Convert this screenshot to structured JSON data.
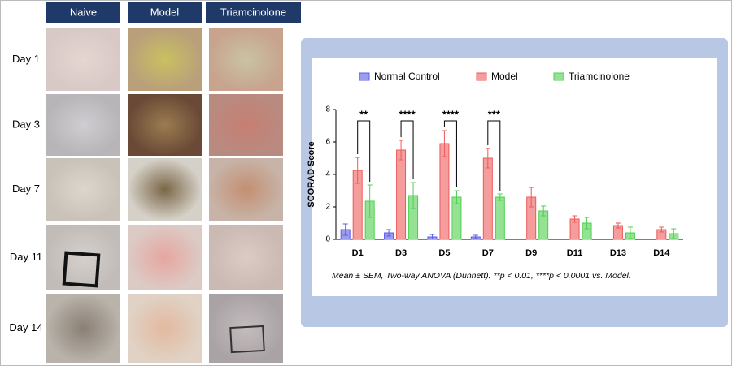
{
  "headers": [
    "Naive",
    "Model",
    "Triamcinolone"
  ],
  "row_labels": [
    "Day 1",
    "Day 3",
    "Day 7",
    "Day 11",
    "Day 14"
  ],
  "chart_data": {
    "type": "bar",
    "y_label": "SCORAD Score",
    "categories": [
      "D1",
      "D3",
      "D5",
      "D7",
      "D9",
      "D11",
      "D13",
      "D14"
    ],
    "series": [
      {
        "name": "Normal Control",
        "color": "#5b5be6",
        "values": [
          0.6,
          0.4,
          0.15,
          0.15,
          null,
          null,
          null,
          null
        ],
        "errors": [
          0.35,
          0.2,
          0.15,
          0.1,
          null,
          null,
          null,
          null
        ]
      },
      {
        "name": "Model",
        "color": "#ee5a5a",
        "values": [
          4.25,
          5.5,
          5.9,
          5.0,
          2.6,
          1.25,
          0.85,
          0.6
        ],
        "errors": [
          0.8,
          0.6,
          0.8,
          0.6,
          0.6,
          0.2,
          0.15,
          0.15
        ]
      },
      {
        "name": "Triamcinolone",
        "color": "#4fcf4f",
        "values": [
          2.35,
          2.7,
          2.6,
          2.6,
          1.75,
          1.0,
          0.4,
          0.35
        ],
        "errors": [
          1.0,
          0.8,
          0.4,
          0.2,
          0.3,
          0.35,
          0.35,
          0.3
        ]
      }
    ],
    "significance": [
      "**",
      "****",
      "****",
      "***",
      null,
      null,
      null,
      null
    ],
    "ylim": [
      0,
      8
    ],
    "yticks": [
      0,
      2,
      4,
      6,
      8
    ],
    "note": "Mean ± SEM, Two-way ANOVA (Dunnett): **p < 0.01, ****p < 0.0001 vs. Model."
  }
}
